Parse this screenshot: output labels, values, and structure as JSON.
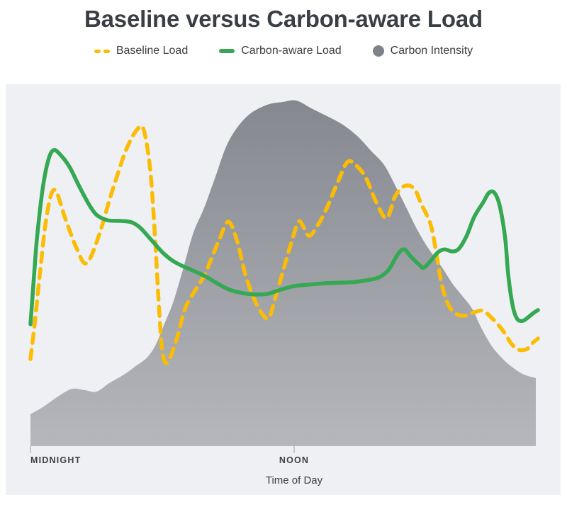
{
  "title": "Baseline versus Carbon-aware Load",
  "legend": [
    {
      "label": "Baseline Load",
      "swatch": "yellow-dashes",
      "color": "#FBBC04"
    },
    {
      "label": "Carbon-aware Load",
      "swatch": "green-line",
      "color": "#34A853"
    },
    {
      "label": "Carbon Intensity",
      "swatch": "gray-circle",
      "color": "#7E838A"
    }
  ],
  "x_axis": {
    "title": "Time of Day",
    "ticks": [
      {
        "label": "MIDNIGHT",
        "hour": 0,
        "align": "left"
      },
      {
        "label": "NOON",
        "hour": 12,
        "align": "center"
      }
    ]
  },
  "colors": {
    "panel_bg": "#EEF0F3",
    "text": "#3C4043",
    "tick": "#C4C7CB",
    "baseline": "#FBBC04",
    "carbon_aware": "#34A853",
    "area_top": "#85888F",
    "area_bottom": "#B5B7BC"
  },
  "chart_data": {
    "type": "area",
    "subtype": "area background + two smoothed line series",
    "title": "Baseline versus Carbon-aware Load",
    "xlabel": "Time of Day",
    "x_unit": "hours, 0 = midnight, 12 = noon",
    "x_range": [
      0,
      23.1
    ],
    "y_unit": "relative load / carbon intensity (unlabeled axis, 0-100)",
    "ylim": [
      0,
      100
    ],
    "grid": false,
    "legend_position": "top",
    "series": [
      {
        "name": "Carbon Intensity",
        "type": "area",
        "style": "filled-gradient",
        "color_top": "#85888F",
        "color_bottom": "#B5B7BC",
        "points": [
          [
            0,
            9.2
          ],
          [
            0.6,
            11.4
          ],
          [
            1.3,
            14.5
          ],
          [
            1.9,
            16.5
          ],
          [
            2.5,
            16.1
          ],
          [
            3.0,
            15.7
          ],
          [
            3.6,
            18.2
          ],
          [
            4.3,
            20.8
          ],
          [
            4.8,
            23.1
          ],
          [
            5.3,
            25.5
          ],
          [
            5.7,
            29.2
          ],
          [
            6.1,
            35.3
          ],
          [
            6.5,
            41.6
          ],
          [
            6.9,
            50
          ],
          [
            7.4,
            61.2
          ],
          [
            7.9,
            68.6
          ],
          [
            8.4,
            77.3
          ],
          [
            9.0,
            87.6
          ],
          [
            9.8,
            94.7
          ],
          [
            10.7,
            98.2
          ],
          [
            11.5,
            99.2
          ],
          [
            12.1,
            99.6
          ],
          [
            12.8,
            97.3
          ],
          [
            13.5,
            95.1
          ],
          [
            14.2,
            92.7
          ],
          [
            14.9,
            89.2
          ],
          [
            15.5,
            85.1
          ],
          [
            16.1,
            81
          ],
          [
            16.6,
            75.1
          ],
          [
            17.1,
            68.8
          ],
          [
            17.6,
            62.4
          ],
          [
            18.1,
            57.1
          ],
          [
            18.7,
            51.8
          ],
          [
            19.2,
            46.9
          ],
          [
            19.6,
            43.7
          ],
          [
            20.1,
            39.6
          ],
          [
            20.5,
            34.3
          ],
          [
            21.0,
            28.8
          ],
          [
            21.5,
            25.1
          ],
          [
            21.9,
            22.9
          ],
          [
            22.4,
            20.8
          ],
          [
            23.0,
            19.6
          ]
        ]
      },
      {
        "name": "Baseline Load",
        "type": "line",
        "style": "dashed",
        "color": "#FBBC04",
        "points": [
          [
            0,
            25.1
          ],
          [
            0.2,
            35.7
          ],
          [
            0.45,
            51
          ],
          [
            0.75,
            66.9
          ],
          [
            1.1,
            73.9
          ],
          [
            1.6,
            65.3
          ],
          [
            2.1,
            57
          ],
          [
            2.55,
            52.7
          ],
          [
            3.1,
            60.4
          ],
          [
            3.7,
            73.1
          ],
          [
            4.35,
            85.3
          ],
          [
            4.85,
            91.2
          ],
          [
            5.15,
            91.2
          ],
          [
            5.45,
            79.6
          ],
          [
            5.65,
            62
          ],
          [
            5.85,
            40
          ],
          [
            6.0,
            27.5
          ],
          [
            6.2,
            23.9
          ],
          [
            6.5,
            27.9
          ],
          [
            6.75,
            33
          ],
          [
            7.0,
            39
          ],
          [
            7.3,
            42.9
          ],
          [
            7.9,
            49
          ],
          [
            8.2,
            53.5
          ],
          [
            8.6,
            59.6
          ],
          [
            9.0,
            64.7
          ],
          [
            9.4,
            59.2
          ],
          [
            9.8,
            49
          ],
          [
            10.3,
            40.8
          ],
          [
            10.8,
            36.7
          ],
          [
            11.1,
            41.8
          ],
          [
            11.5,
            50.6
          ],
          [
            11.9,
            59.2
          ],
          [
            12.2,
            64.7
          ],
          [
            12.45,
            62.9
          ],
          [
            12.7,
            60.6
          ],
          [
            13.1,
            63.9
          ],
          [
            13.5,
            68.8
          ],
          [
            14.0,
            76.3
          ],
          [
            14.45,
            82
          ],
          [
            14.9,
            80.4
          ],
          [
            15.3,
            76.9
          ],
          [
            15.7,
            70.8
          ],
          [
            16.2,
            65.7
          ],
          [
            16.6,
            72
          ],
          [
            17.0,
            74.9
          ],
          [
            17.45,
            74.3
          ],
          [
            17.8,
            69.6
          ],
          [
            18.2,
            64.1
          ],
          [
            18.45,
            56.5
          ],
          [
            18.7,
            47.1
          ],
          [
            19.0,
            41
          ],
          [
            19.35,
            38.2
          ],
          [
            19.8,
            37.6
          ],
          [
            20.2,
            38.6
          ],
          [
            20.6,
            39
          ],
          [
            21.0,
            36.9
          ],
          [
            21.3,
            34.9
          ],
          [
            21.6,
            32.4
          ],
          [
            21.9,
            29.4
          ],
          [
            22.2,
            27.8
          ],
          [
            22.6,
            28
          ],
          [
            22.9,
            30
          ],
          [
            23.1,
            31
          ]
        ]
      },
      {
        "name": "Carbon-aware Load",
        "type": "line",
        "style": "solid",
        "color": "#34A853",
        "points": [
          [
            0,
            35.1
          ],
          [
            0.15,
            48
          ],
          [
            0.3,
            60.2
          ],
          [
            0.55,
            73.9
          ],
          [
            0.8,
            82.2
          ],
          [
            1.05,
            85.3
          ],
          [
            1.4,
            83.7
          ],
          [
            1.8,
            80.2
          ],
          [
            2.2,
            75.1
          ],
          [
            2.65,
            69.8
          ],
          [
            3.0,
            66.7
          ],
          [
            3.5,
            65.1
          ],
          [
            4.1,
            64.9
          ],
          [
            4.6,
            64.5
          ],
          [
            5.0,
            62.9
          ],
          [
            5.5,
            59.4
          ],
          [
            6.0,
            55.9
          ],
          [
            6.45,
            53.5
          ],
          [
            6.95,
            51.8
          ],
          [
            7.4,
            50.6
          ],
          [
            8.0,
            48.8
          ],
          [
            8.5,
            46.9
          ],
          [
            9.05,
            45.1
          ],
          [
            9.65,
            44.1
          ],
          [
            10.2,
            43.7
          ],
          [
            10.8,
            43.9
          ],
          [
            11.4,
            45.1
          ],
          [
            12.0,
            46.1
          ],
          [
            12.6,
            46.5
          ],
          [
            13.3,
            46.9
          ],
          [
            14.0,
            47.1
          ],
          [
            14.75,
            47.3
          ],
          [
            15.3,
            47.8
          ],
          [
            15.85,
            48.6
          ],
          [
            16.3,
            50.8
          ],
          [
            16.7,
            55.1
          ],
          [
            17.0,
            56.7
          ],
          [
            17.3,
            54.7
          ],
          [
            17.7,
            52.2
          ],
          [
            17.9,
            51.4
          ],
          [
            18.2,
            53.3
          ],
          [
            18.55,
            55.9
          ],
          [
            18.85,
            56.7
          ],
          [
            19.2,
            56.1
          ],
          [
            19.5,
            56.9
          ],
          [
            19.85,
            60.6
          ],
          [
            20.2,
            66.1
          ],
          [
            20.6,
            70.2
          ],
          [
            20.85,
            72.9
          ],
          [
            21.1,
            73.1
          ],
          [
            21.35,
            69.4
          ],
          [
            21.6,
            60.2
          ],
          [
            21.75,
            49
          ],
          [
            21.95,
            40.4
          ],
          [
            22.15,
            36.7
          ],
          [
            22.4,
            36.1
          ],
          [
            22.65,
            37.1
          ],
          [
            22.9,
            38.4
          ],
          [
            23.1,
            39.2
          ]
        ]
      }
    ]
  }
}
